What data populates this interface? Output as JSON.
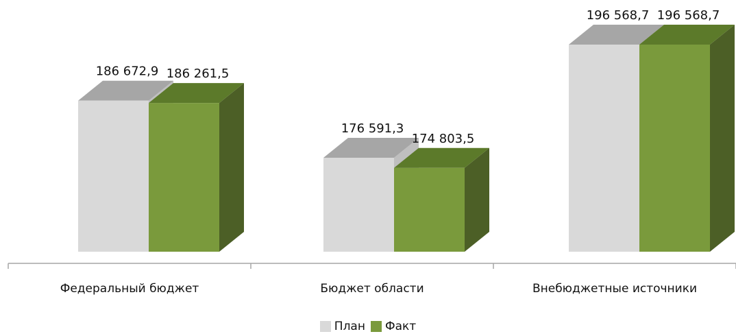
{
  "chart_data": {
    "type": "bar",
    "style": "3d-clustered-column",
    "categories": [
      "Федеральный бюджет",
      "Бюджет области",
      "Внебюджетные источники"
    ],
    "series": [
      {
        "name": "План",
        "values": [
          186672.9,
          176591.3,
          196568.7
        ],
        "labels": [
          "186 672,9",
          "176 591,3",
          "196 568,7"
        ],
        "color": "#d9d9d9",
        "top_color": "#a6a6a6",
        "side_color": "#bfbfbf"
      },
      {
        "name": "Факт",
        "values": [
          186261.5,
          174803.5,
          196568.7
        ],
        "labels": [
          "186 261,5",
          "174 803,5",
          "196 568,7"
        ],
        "color": "#7a9a3c",
        "top_color": "#5c7a2a",
        "side_color": "#4c5f26"
      }
    ],
    "legend_position": "bottom",
    "axis_color": "#a6a6a6"
  }
}
